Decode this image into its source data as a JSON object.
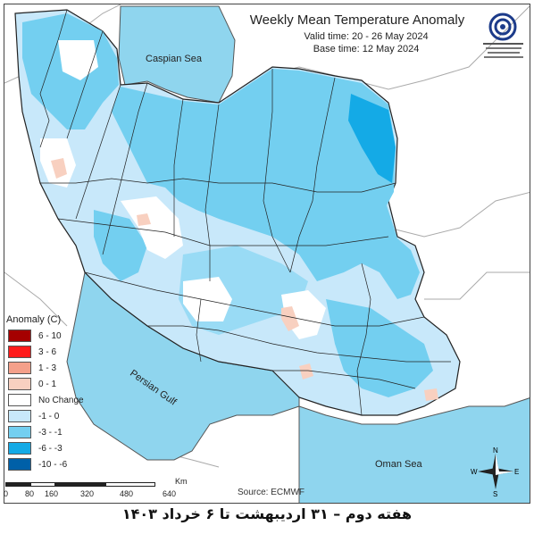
{
  "header": {
    "title": "Weekly Mean Temperature Anomaly",
    "valid": "Valid time: 20 - 26 May 2024",
    "base": "Base time: 12 May 2024"
  },
  "labels": {
    "caspian": "Caspian Sea",
    "persian_gulf": "Persian Gulf",
    "oman_sea": "Oman Sea"
  },
  "legend": {
    "title": "Anomaly (C)",
    "items": [
      {
        "label": "6 - 10",
        "color": "#a50000"
      },
      {
        "label": "3 - 6",
        "color": "#ff1a1a"
      },
      {
        "label": "1 - 3",
        "color": "#f4a08a"
      },
      {
        "label": "0 - 1",
        "color": "#f8d0c0"
      },
      {
        "label": "No Change",
        "color": "#ffffff"
      },
      {
        "label": "-1 - 0",
        "color": "#c8e8fa"
      },
      {
        "label": "-3 - -1",
        "color": "#73cff0"
      },
      {
        "label": "-6 - -3",
        "color": "#14aae6"
      },
      {
        "label": "-10 - -6",
        "color": "#0060a8"
      }
    ]
  },
  "scale": {
    "unit": "Km",
    "ticks": [
      "0",
      "80",
      "160",
      "320",
      "480",
      "640"
    ]
  },
  "compass": {
    "n": "N",
    "s": "S",
    "e": "E",
    "w": "W"
  },
  "source": "Source: ECMWF",
  "footer": "هفته دوم – ۳۱ اردیبهشت تا ۶ خرداد ۱۴۰۳"
}
